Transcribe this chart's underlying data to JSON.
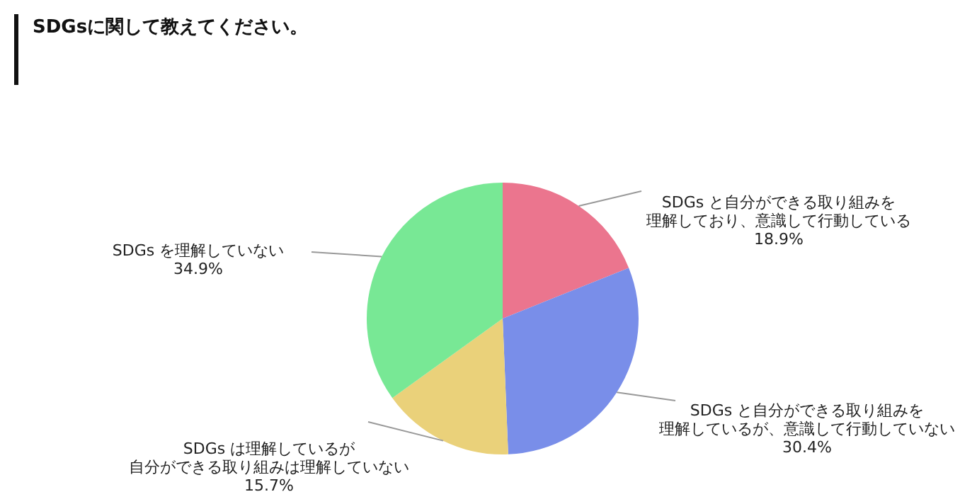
{
  "chart_data": {
    "type": "pie",
    "title": "SDGsに関して教えてください。",
    "categories": [
      "SDGs と自分ができる取り組みを理解しており、意識して行動している",
      "SDGs と自分ができる取り組みを理解しているが、意識して行動していない",
      "SDGs は理解しているが自分ができる取り組みは理解していない",
      "SDGs を理解していない"
    ],
    "values": [
      18.9,
      30.4,
      15.7,
      34.9
    ],
    "value_labels": [
      "18.9%",
      "30.4%",
      "15.7%",
      "34.9%"
    ],
    "colors": [
      "#eb758e",
      "#798ee9",
      "#ead17a",
      "#78e895"
    ],
    "legend": false
  }
}
